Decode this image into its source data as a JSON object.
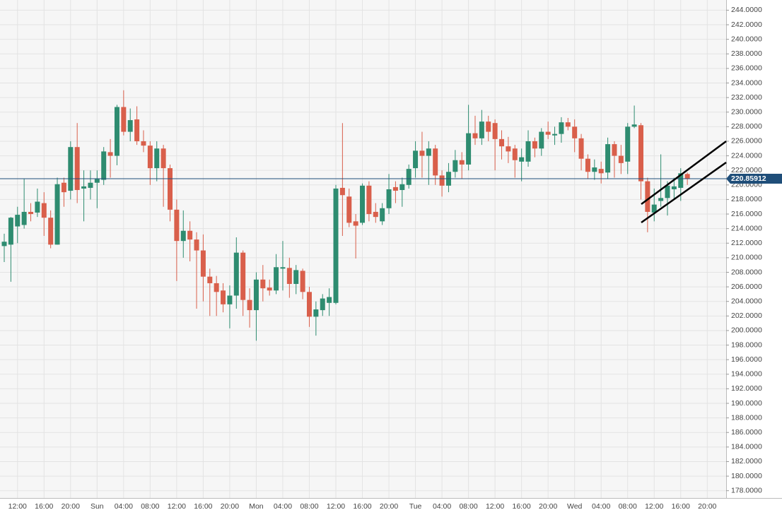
{
  "chart_data": {
    "type": "candlestick",
    "categories": [
      null,
      null,
      "12:00",
      null,
      null,
      null,
      "16:00",
      null,
      null,
      null,
      "20:00",
      null,
      null,
      null,
      "Sun",
      null,
      null,
      null,
      "04:00",
      null,
      null,
      null,
      "08:00",
      null,
      null,
      null,
      "12:00",
      null,
      null,
      null,
      "16:00",
      null,
      null,
      null,
      "20:00",
      null,
      null,
      null,
      "Mon",
      null,
      null,
      null,
      "04:00",
      null,
      null,
      null,
      "08:00",
      null,
      null,
      null,
      "12:00",
      null,
      null,
      null,
      "16:00",
      null,
      null,
      null,
      "20:00",
      null,
      null,
      null,
      "Tue",
      null,
      null,
      null,
      "04:00",
      null,
      null,
      null,
      "08:00",
      null,
      null,
      null,
      "12:00",
      null,
      null,
      null,
      "16:00",
      null,
      null,
      null,
      "20:00",
      null,
      null,
      null,
      "Wed",
      null,
      null,
      null,
      "04:00",
      null,
      null,
      null,
      "08:00",
      null,
      null,
      null,
      "12:00",
      null,
      null,
      null,
      "16:00",
      null,
      null,
      null,
      "20:00",
      null,
      null,
      null
    ],
    "open": [
      211.6,
      211.8,
      214.3,
      214.5,
      216.3,
      216.2,
      217.5,
      215.5,
      211.8,
      220.3,
      219.2,
      225.2,
      219.5,
      219.6,
      220.3,
      220.7,
      224.5,
      224,
      230.7,
      227.3,
      229,
      226,
      225.4,
      222.3,
      225,
      222.3,
      216.6,
      212.3,
      213.7,
      212.5,
      211,
      207.4,
      206.5,
      205.5,
      203.6,
      204.8,
      210.7,
      204.2,
      202.8,
      207,
      205.9,
      205.5,
      208.5,
      208.6,
      206.4,
      208.2,
      205.3,
      201.9,
      202.8,
      203.8,
      203.8,
      219.6,
      218.4,
      215,
      214.8,
      219.9,
      216.3,
      215,
      216.8,
      219.7,
      219.3,
      220,
      222.3,
      224.7,
      224,
      225,
      221.3,
      219.9,
      221.8,
      223.4,
      222.8,
      227.1,
      226.4,
      228.7,
      228.5,
      226.3,
      225.3,
      225,
      223.2,
      223.2,
      226,
      225,
      227.3,
      226.8,
      227,
      228.6,
      228,
      226.4,
      223.6,
      221.8,
      222.2,
      221.7,
      225.6,
      224,
      223.2,
      228,
      228.2,
      220.5,
      216.2,
      217.8,
      218.2,
      219.4,
      219.6,
      221.5,
      null,
      null,
      null,
      null,
      null,
      null
    ],
    "high": [
      213.3,
      215.6,
      217,
      220.9,
      217.5,
      219.5,
      219,
      216.5,
      221,
      221,
      226,
      228.5,
      222,
      222,
      222,
      225.2,
      226.3,
      231,
      233,
      230.5,
      230.8,
      227.5,
      226,
      226,
      225.5,
      222.8,
      218,
      216.5,
      215,
      213.5,
      213.2,
      208.5,
      207.5,
      206.5,
      206.2,
      212.8,
      211,
      205.8,
      208,
      209,
      207,
      210.5,
      212.3,
      210,
      209,
      208.5,
      206,
      204,
      205,
      205.8,
      220,
      228.5,
      219.5,
      216,
      220.2,
      220.5,
      217.5,
      217.5,
      221.5,
      220.5,
      221,
      222.8,
      226,
      227.3,
      226,
      225.5,
      222,
      223,
      224.8,
      224.5,
      231,
      229.5,
      230.3,
      229.5,
      229,
      227.5,
      226.6,
      225.5,
      225,
      227.5,
      226.5,
      227.8,
      228.7,
      228,
      229.3,
      229.2,
      229,
      227,
      224.2,
      223.5,
      223.2,
      226.5,
      226,
      225.5,
      228.5,
      230.9,
      228.5,
      221,
      219.5,
      224.2,
      220.5,
      221,
      222.3,
      221.7,
      null,
      null,
      null,
      null,
      null,
      null
    ],
    "low": [
      209.4,
      206.7,
      212,
      214,
      215,
      215.6,
      213,
      211.3,
      211.8,
      217,
      218,
      217.5,
      215,
      218,
      216.8,
      220,
      221,
      222.7,
      226.8,
      226,
      225.5,
      224.5,
      220,
      220.5,
      217,
      215,
      206.8,
      210,
      209.5,
      203,
      204,
      202,
      202,
      202.5,
      200.3,
      203,
      202,
      200.4,
      198.6,
      204,
      204.8,
      205,
      205.5,
      204.5,
      205,
      204.3,
      200.5,
      199.3,
      202,
      202,
      203.6,
      213,
      214.2,
      209.9,
      214.5,
      215,
      214.8,
      214.5,
      216,
      217.5,
      217,
      219.5,
      221,
      221,
      220,
      220,
      218.4,
      219,
      221,
      220.8,
      222,
      225.5,
      225.5,
      226,
      222,
      223.5,
      223,
      221,
      220.5,
      222.5,
      223.8,
      224,
      226.3,
      225.5,
      225.8,
      227.5,
      224.5,
      222,
      220.8,
      220.7,
      220.2,
      220.8,
      221,
      221.5,
      221.5,
      227.8,
      218,
      213.5,
      215,
      217,
      215.8,
      218,
      217.8,
      220,
      null,
      null,
      null,
      null,
      null,
      null
    ],
    "close": [
      212.2,
      215.5,
      215.9,
      216.3,
      216,
      217.7,
      215.5,
      211.8,
      220.1,
      219,
      225.2,
      219.3,
      219.8,
      220.3,
      220.8,
      224.6,
      224,
      230.7,
      227.3,
      228.9,
      226,
      225.4,
      222.3,
      225,
      222.3,
      216.6,
      212.3,
      213.7,
      212.5,
      211,
      207.4,
      206.5,
      205.3,
      203.6,
      204.8,
      210.7,
      204.2,
      202.8,
      207,
      205.8,
      205.5,
      208.7,
      208.7,
      206.4,
      208.3,
      205.3,
      201.9,
      202.9,
      204.4,
      204.6,
      219.5,
      218.6,
      214.8,
      214.4,
      219.9,
      216,
      215.6,
      216.8,
      219.4,
      219.2,
      220.1,
      222.2,
      224.7,
      224,
      225,
      221.3,
      219.9,
      221.8,
      223.4,
      222.8,
      227.1,
      226.4,
      228.7,
      227.3,
      226.3,
      225.3,
      224.6,
      223.4,
      223.8,
      226,
      225,
      227.3,
      226.9,
      227,
      228.6,
      228,
      226.4,
      223.6,
      221.8,
      222.4,
      221.6,
      225.6,
      224,
      223,
      228,
      228.3,
      220.5,
      216.3,
      217.3,
      218.2,
      219.9,
      219.8,
      221.6,
      220.86,
      null,
      null,
      null,
      null,
      null,
      null
    ],
    "up_color": "#2e8c70",
    "down_color": "#d95f4b",
    "last_price": 220.85912,
    "last_price_color": "#1f4e79",
    "ylim": [
      177,
      245.4
    ],
    "yticks": [
      {
        "value": 178,
        "label": "178.0000"
      },
      {
        "value": 180,
        "label": "180.0000"
      },
      {
        "value": 182,
        "label": "182.0000"
      },
      {
        "value": 184,
        "label": "184.0000"
      },
      {
        "value": 186,
        "label": "186.0000"
      },
      {
        "value": 188,
        "label": "188.0000"
      },
      {
        "value": 190,
        "label": "190.0000"
      },
      {
        "value": 192,
        "label": "192.0000"
      },
      {
        "value": 194,
        "label": "194.0000"
      },
      {
        "value": 196,
        "label": "196.0000"
      },
      {
        "value": 198,
        "label": "198.0000"
      },
      {
        "value": 200,
        "label": "200.0000"
      },
      {
        "value": 202,
        "label": "202.0000"
      },
      {
        "value": 204,
        "label": "204.0000"
      },
      {
        "value": 206,
        "label": "206.0000"
      },
      {
        "value": 208,
        "label": "208.0000"
      },
      {
        "value": 210,
        "label": "210.0000"
      },
      {
        "value": 212,
        "label": "212.0000"
      },
      {
        "value": 214,
        "label": "214.0000"
      },
      {
        "value": 216,
        "label": "216.0000"
      },
      {
        "value": 218,
        "label": "218.0000"
      },
      {
        "value": 220,
        "label": "220.0000"
      },
      {
        "value": 222,
        "label": "222.0000"
      },
      {
        "value": 224,
        "label": "224.0000"
      },
      {
        "value": 226,
        "label": "226.0000"
      },
      {
        "value": 228,
        "label": "228.0000"
      },
      {
        "value": 230,
        "label": "230.0000"
      },
      {
        "value": 232,
        "label": "232.0000"
      },
      {
        "value": 234,
        "label": "234.0000"
      },
      {
        "value": 236,
        "label": "236.0000"
      },
      {
        "value": 238,
        "label": "238.0000"
      },
      {
        "value": 240,
        "label": "240.0000"
      },
      {
        "value": 242,
        "label": "242.0000"
      },
      {
        "value": 244,
        "label": "244.0000"
      }
    ],
    "grid": true
  }
}
